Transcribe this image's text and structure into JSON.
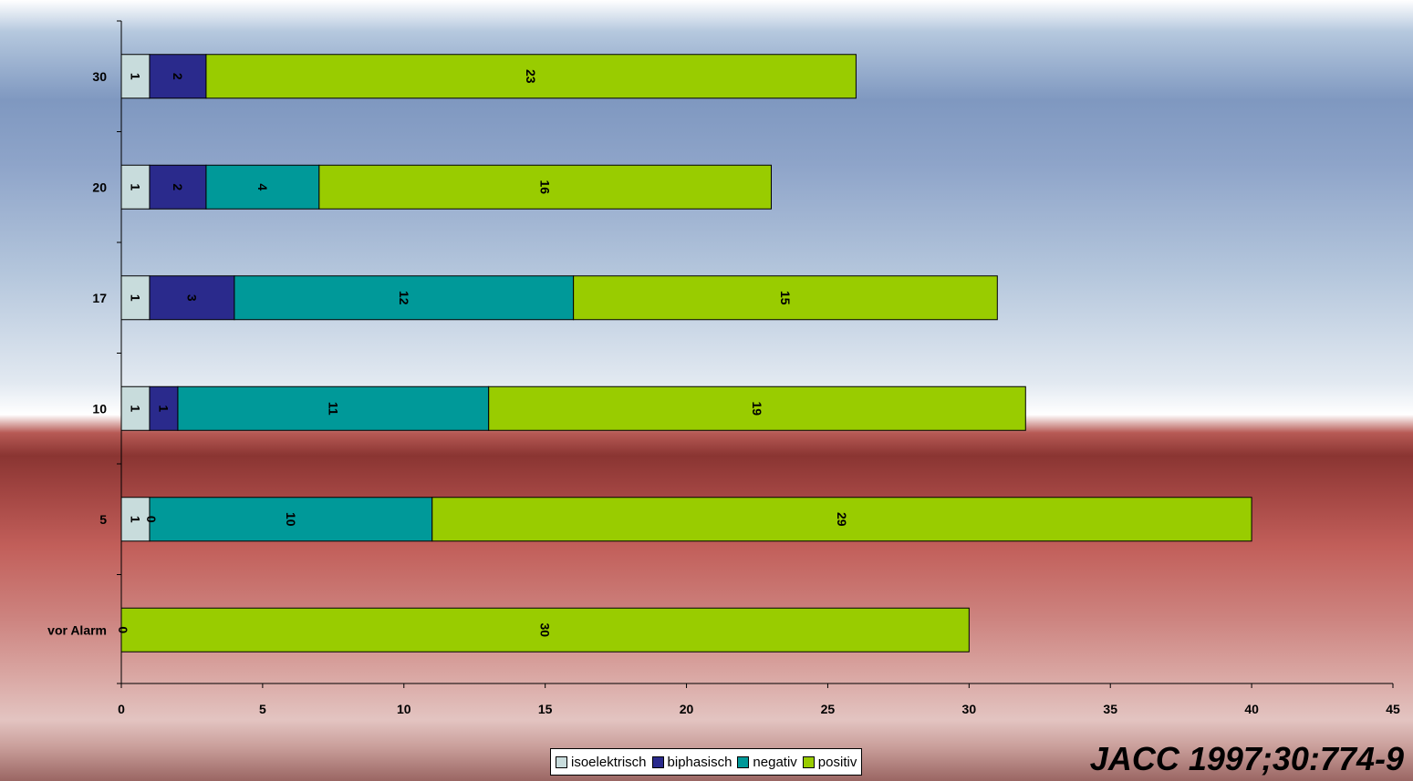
{
  "chart_data": {
    "type": "bar",
    "orientation": "horizontal",
    "stacked": true,
    "categories": [
      "30",
      "20",
      "17",
      "10",
      "5",
      "vor Alarm"
    ],
    "series": [
      {
        "name": "isoelektrisch",
        "values": [
          1,
          1,
          1,
          1,
          1,
          0
        ],
        "color": "#c8dcdc"
      },
      {
        "name": "biphasisch",
        "values": [
          2,
          2,
          3,
          1,
          0,
          0
        ],
        "color": "#2a2a8c"
      },
      {
        "name": "negativ",
        "values": [
          0,
          4,
          12,
          11,
          10,
          0
        ],
        "color": "#009999"
      },
      {
        "name": "positiv",
        "values": [
          23,
          16,
          15,
          19,
          29,
          30
        ],
        "color": "#99cc00"
      }
    ],
    "labels": [
      [
        "1",
        "2",
        null,
        "23"
      ],
      [
        "1",
        "2",
        "4",
        "16"
      ],
      [
        "1",
        "3",
        "12",
        "15"
      ],
      [
        "1",
        "1",
        "11",
        "19"
      ],
      [
        "1",
        "0",
        "10",
        "29"
      ],
      [
        "0",
        null,
        null,
        "30"
      ]
    ],
    "xlim": [
      0,
      45
    ],
    "xticks": [
      "0",
      "5",
      "10",
      "15",
      "20",
      "25",
      "30",
      "35",
      "40",
      "45"
    ],
    "grid": false,
    "legend_position": "bottom",
    "label_light_text_series": [
      "biphasisch"
    ]
  },
  "citation": "JACC 1997;30:774-9"
}
